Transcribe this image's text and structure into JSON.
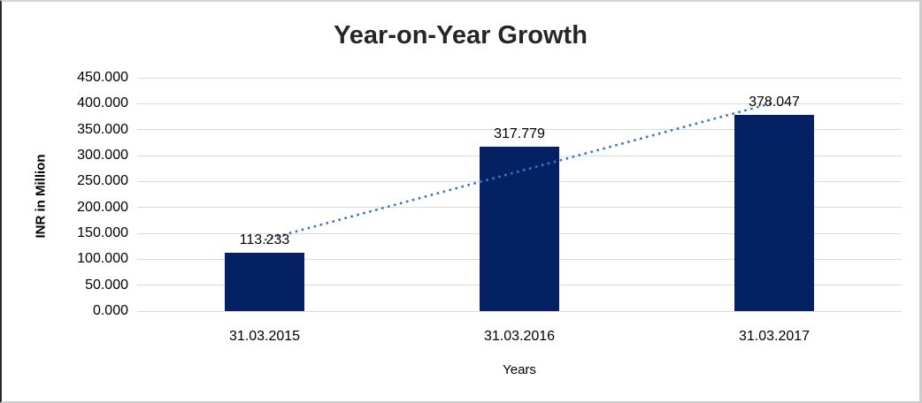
{
  "chart_data": {
    "type": "bar",
    "title": "Year-on-Year Growth",
    "xlabel": "Years",
    "ylabel": "INR in Million",
    "categories": [
      "31.03.2015",
      "31.03.2016",
      "31.03.2017"
    ],
    "values": [
      113.233,
      317.779,
      378.047
    ],
    "data_labels": [
      "113.233",
      "317.779",
      "378.047"
    ],
    "ylim": [
      0,
      450
    ],
    "ytick_step": 50,
    "ytick_labels": [
      "0.000",
      "50.000",
      "100.000",
      "150.000",
      "200.000",
      "250.000",
      "300.000",
      "350.000",
      "400.000",
      "450.000"
    ],
    "grid": "horizontal",
    "legend": "none",
    "trendline": {
      "type": "linear",
      "style": "dotted",
      "fitted_endpoints": [
        137.279,
        402.093
      ]
    },
    "colors": {
      "bar": "#042263",
      "gridline": "#d9d9d9",
      "trendline": "#4472c4",
      "title_text": "#262626",
      "label_text": "#000000",
      "background": "#ffffff"
    }
  }
}
